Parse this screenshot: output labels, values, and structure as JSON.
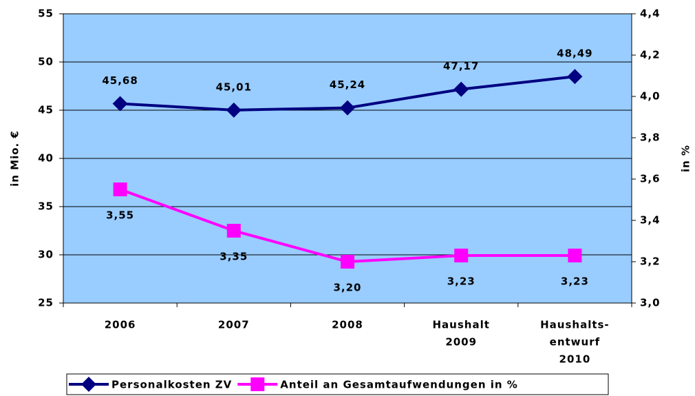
{
  "chart_data": {
    "type": "line",
    "categories": [
      [
        "2006"
      ],
      [
        "2007"
      ],
      [
        "2008"
      ],
      [
        "Haushalt",
        "2009"
      ],
      [
        "Haushalts-",
        "entwurf",
        "2010"
      ]
    ],
    "ylabel": "in Mio. €",
    "y2label": "in %",
    "ylim": [
      25,
      55
    ],
    "yticks": [
      25,
      30,
      35,
      40,
      45,
      50,
      55
    ],
    "y2lim": [
      3.0,
      4.4
    ],
    "y2ticks": [
      {
        "value": 3.0,
        "label": "3,0"
      },
      {
        "value": 3.2,
        "label": "3,2"
      },
      {
        "value": 3.4,
        "label": "3,4"
      },
      {
        "value": 3.6,
        "label": "3,6"
      },
      {
        "value": 3.8,
        "label": "3,8"
      },
      {
        "value": 4.0,
        "label": "4,0"
      },
      {
        "value": 4.2,
        "label": "4,2"
      },
      {
        "value": 4.4,
        "label": "4,4"
      }
    ],
    "grid": true,
    "legend": "bottom",
    "background": "#99ccff",
    "series": [
      {
        "name": "Personalkosten ZV",
        "color": "#000080",
        "marker": "diamond",
        "values": [
          45.68,
          45.01,
          45.24,
          47.17,
          48.49
        ],
        "value_labels": [
          "45,68",
          "45,01",
          "45,24",
          "47,17",
          "48,49"
        ]
      },
      {
        "name": "Anteil an Gesamtaufwendungen in %",
        "color": "#ff00ff",
        "marker": "square",
        "axis": "y2",
        "values": [
          3.55,
          3.35,
          3.2,
          3.23,
          3.23
        ],
        "value_labels": [
          "3,55",
          "3,35",
          "3,20",
          "3,23",
          "3,23"
        ]
      }
    ]
  }
}
